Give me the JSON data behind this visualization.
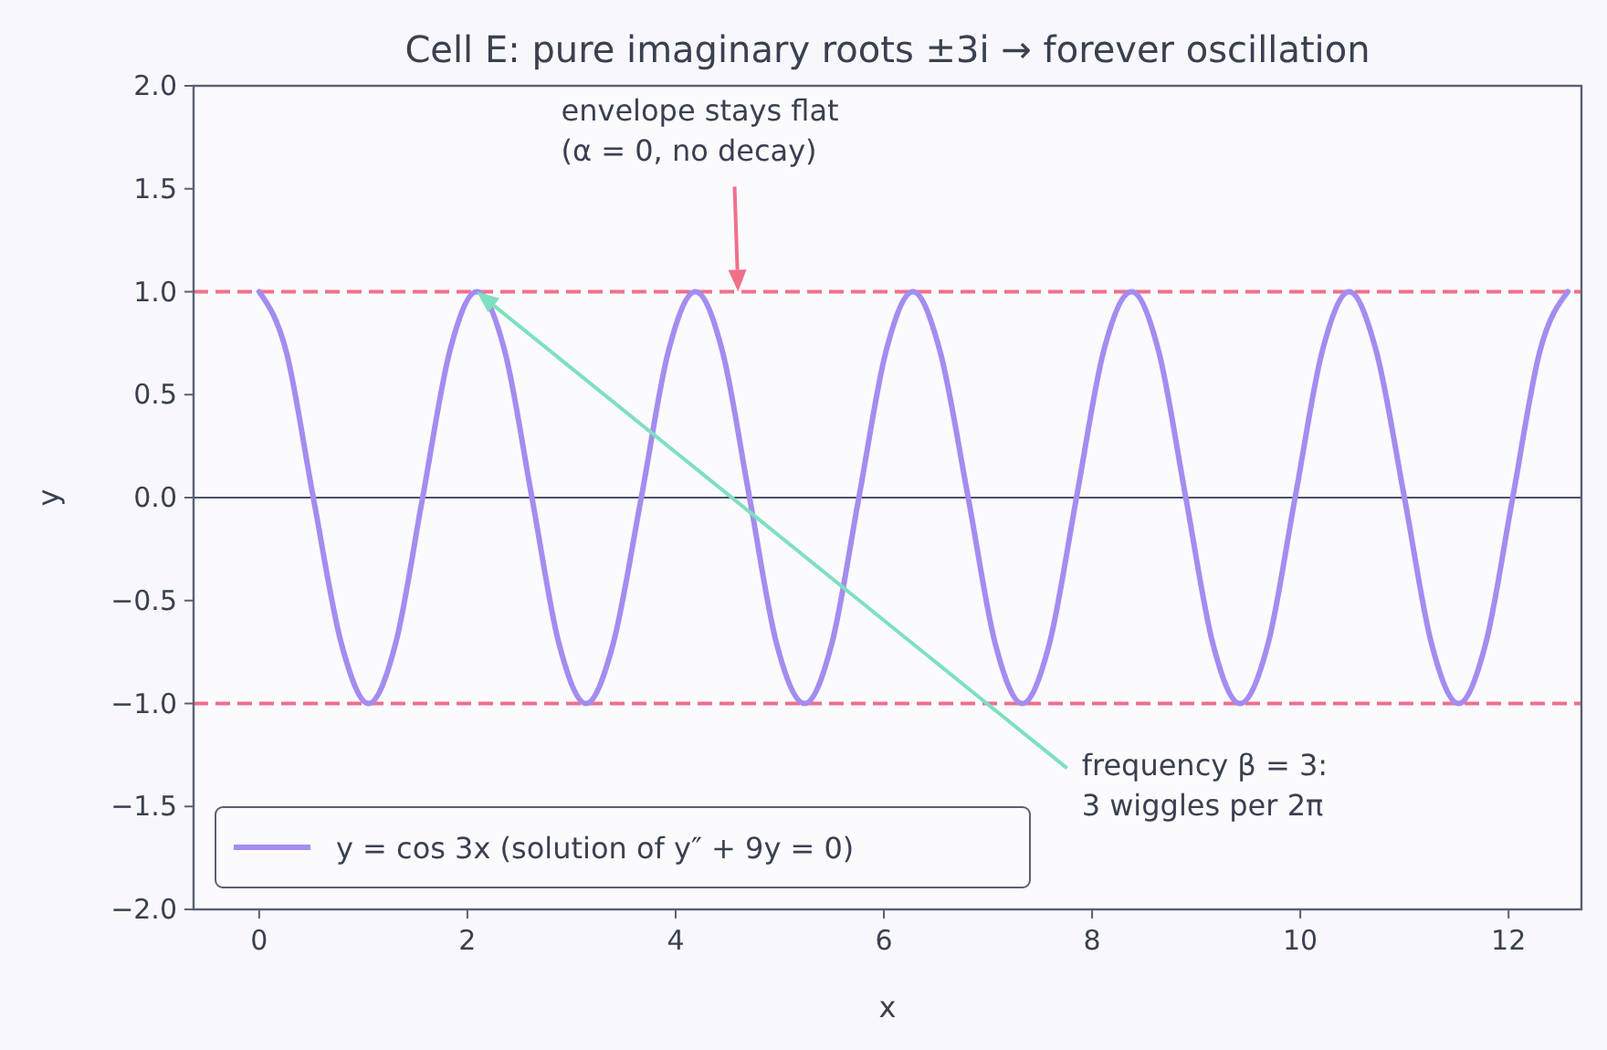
{
  "chart_data": {
    "type": "line",
    "title": "Cell E: pure imaginary roots ±3i → forever oscillation",
    "xlabel": "x",
    "ylabel": "y",
    "x": [
      0,
      0.26,
      0.52,
      0.79,
      1.05,
      1.31,
      1.57,
      1.83,
      2.09,
      2.36,
      2.62,
      2.88,
      3.14,
      3.4,
      3.67,
      3.93,
      4.19,
      4.45,
      4.71,
      4.97,
      5.24,
      5.5,
      5.76,
      6.02,
      6.28,
      6.54,
      6.81,
      7.07,
      7.33,
      7.59,
      7.85,
      8.11,
      8.38,
      8.64,
      8.9,
      9.16,
      9.42,
      9.69,
      9.95,
      10.21,
      10.47,
      10.73,
      11.0,
      11.26,
      11.52,
      11.78,
      12.04,
      12.3,
      12.57
    ],
    "series": [
      {
        "name": "y = cos 3x  (solution of y″ + 9y = 0)",
        "color": "#a48cf0",
        "values": [
          1,
          0.71,
          0,
          -0.71,
          -1,
          -0.71,
          0,
          0.71,
          1,
          0.71,
          0,
          -0.71,
          -1,
          -0.71,
          0,
          0.71,
          1,
          0.71,
          0,
          -0.71,
          -1,
          -0.71,
          0,
          0.71,
          1,
          0.71,
          0,
          -0.71,
          -1,
          -0.71,
          0,
          0.71,
          1,
          0.71,
          0,
          -0.71,
          -1,
          -0.71,
          0,
          0.71,
          1,
          0.71,
          0,
          -0.71,
          -1,
          -0.71,
          0,
          0.71,
          1
        ]
      }
    ],
    "xlim": [
      -0.63,
      12.7
    ],
    "xticks": [
      0,
      2,
      4,
      6,
      8,
      10,
      12
    ],
    "ylim": [
      -2,
      2
    ],
    "yticks": [
      {
        "value": -2,
        "label": "−2.0"
      },
      {
        "value": -1.5,
        "label": "−1.5"
      },
      {
        "value": -1,
        "label": "−1.0"
      },
      {
        "value": -0.5,
        "label": "−0.5"
      },
      {
        "value": 0,
        "label": "0.0"
      },
      {
        "value": 0.5,
        "label": "0.5"
      },
      {
        "value": 1,
        "label": "1.0"
      },
      {
        "value": 1.5,
        "label": "1.5"
      },
      {
        "value": 2,
        "label": "2.0"
      }
    ],
    "ref_lines": [
      {
        "axis": "y",
        "value": 1,
        "color": "#f0708a",
        "line_style": "dashed"
      },
      {
        "axis": "y",
        "value": -1,
        "color": "#f0708a",
        "line_style": "dashed"
      },
      {
        "axis": "y",
        "value": 0,
        "color": "#4a5064",
        "line_style": "solid"
      }
    ],
    "annotations": [
      "envelope stays flat\n(α = 0, no decay)",
      "frequency β = 3:\n3 wiggles per 2π"
    ],
    "legend": "bottom left",
    "grid": false,
    "marker": "none",
    "line_style": "solid"
  }
}
